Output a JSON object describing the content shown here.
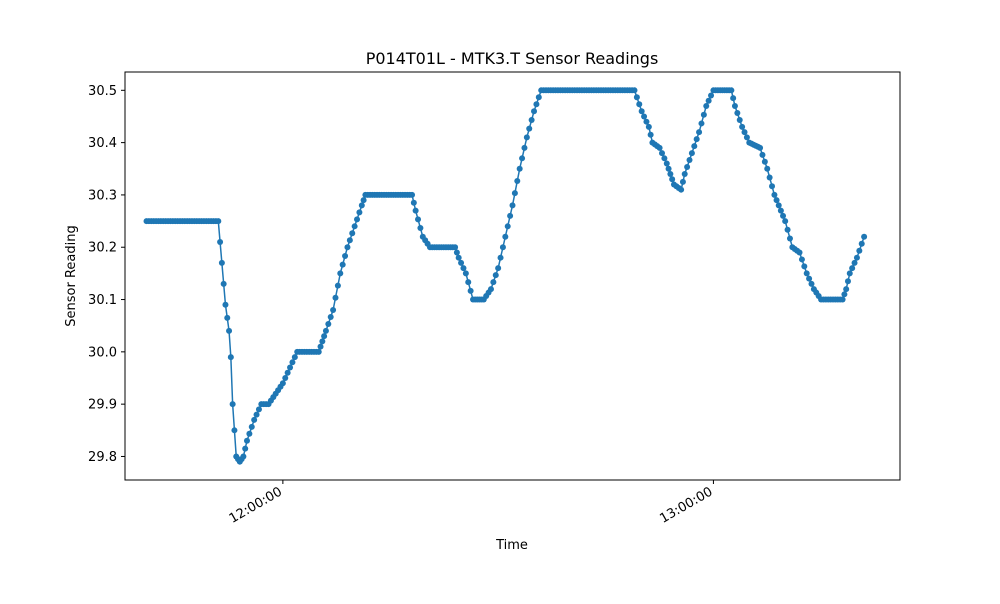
{
  "chart_data": {
    "type": "line",
    "title": "P014T01L - MTK3.T Sensor Readings",
    "xlabel": "Time",
    "ylabel": "Sensor Reading",
    "xlim": [
      "11:38:00",
      "13:26:00"
    ],
    "ylim": [
      29.755,
      30.535
    ],
    "x_ticks": [
      "12:00:00",
      "13:00:00"
    ],
    "y_ticks": [
      "29.8",
      "29.9",
      "30.0",
      "30.1",
      "30.2",
      "30.3",
      "30.4",
      "30.5"
    ],
    "grid": false,
    "legend": "none",
    "color": "#1f77b4",
    "series": [
      {
        "marker": "circle",
        "points": [
          [
            "11:41:00",
            30.25
          ],
          [
            "11:51:00",
            30.25
          ],
          [
            "11:51:30",
            30.17
          ],
          [
            "11:52:00",
            30.09
          ],
          [
            "11:52:30",
            30.04
          ],
          [
            "11:52:45",
            29.99
          ],
          [
            "11:53:00",
            29.9
          ],
          [
            "11:53:30",
            29.8
          ],
          [
            "11:54:00",
            29.79
          ],
          [
            "11:54:30",
            29.8
          ],
          [
            "11:55:00",
            29.83
          ],
          [
            "11:56:00",
            29.87
          ],
          [
            "11:57:00",
            29.9
          ],
          [
            "11:58:00",
            29.9
          ],
          [
            "11:59:00",
            29.92
          ],
          [
            "12:00:00",
            29.94
          ],
          [
            "12:01:00",
            29.97
          ],
          [
            "12:02:00",
            30.0
          ],
          [
            "12:05:00",
            30.0
          ],
          [
            "12:05:30",
            30.02
          ],
          [
            "12:06:00",
            30.04
          ],
          [
            "12:07:00",
            30.08
          ],
          [
            "12:08:00",
            30.15
          ],
          [
            "12:09:00",
            30.2
          ],
          [
            "12:10:00",
            30.24
          ],
          [
            "12:11:00",
            30.28
          ],
          [
            "12:11:30",
            30.3
          ],
          [
            "12:18:00",
            30.3
          ],
          [
            "12:18:30",
            30.27
          ],
          [
            "12:19:30",
            30.22
          ],
          [
            "12:20:30",
            30.2
          ],
          [
            "12:24:00",
            30.2
          ],
          [
            "12:24:30",
            30.18
          ],
          [
            "12:25:30",
            30.15
          ],
          [
            "12:26:30",
            30.1
          ],
          [
            "12:28:00",
            30.1
          ],
          [
            "12:29:00",
            30.12
          ],
          [
            "12:30:00",
            30.16
          ],
          [
            "12:31:00",
            30.22
          ],
          [
            "12:32:00",
            30.28
          ],
          [
            "12:33:00",
            30.35
          ],
          [
            "12:34:00",
            30.41
          ],
          [
            "12:35:00",
            30.46
          ],
          [
            "12:36:00",
            30.5
          ],
          [
            "12:49:00",
            30.5
          ],
          [
            "12:50:00",
            30.46
          ],
          [
            "12:51:00",
            30.43
          ],
          [
            "12:51:30",
            30.4
          ],
          [
            "12:52:30",
            30.39
          ],
          [
            "12:53:30",
            30.36
          ],
          [
            "12:54:00",
            30.34
          ],
          [
            "12:54:30",
            30.32
          ],
          [
            "12:55:30",
            30.31
          ],
          [
            "12:56:00",
            30.34
          ],
          [
            "12:57:00",
            30.38
          ],
          [
            "12:58:00",
            30.42
          ],
          [
            "12:59:00",
            30.47
          ],
          [
            "13:00:00",
            30.5
          ],
          [
            "13:02:30",
            30.5
          ],
          [
            "13:03:00",
            30.47
          ],
          [
            "13:04:00",
            30.43
          ],
          [
            "13:05:00",
            30.4
          ],
          [
            "13:06:30",
            30.39
          ],
          [
            "13:07:30",
            30.35
          ],
          [
            "13:08:30",
            30.3
          ],
          [
            "13:10:00",
            30.25
          ],
          [
            "13:11:00",
            30.2
          ],
          [
            "13:12:00",
            30.19
          ],
          [
            "13:13:00",
            30.15
          ],
          [
            "13:14:00",
            30.12
          ],
          [
            "13:15:00",
            30.1
          ],
          [
            "13:18:00",
            30.1
          ],
          [
            "13:18:30",
            30.12
          ],
          [
            "13:19:00",
            30.15
          ],
          [
            "13:20:00",
            30.18
          ],
          [
            "13:21:00",
            30.22
          ]
        ]
      }
    ]
  }
}
